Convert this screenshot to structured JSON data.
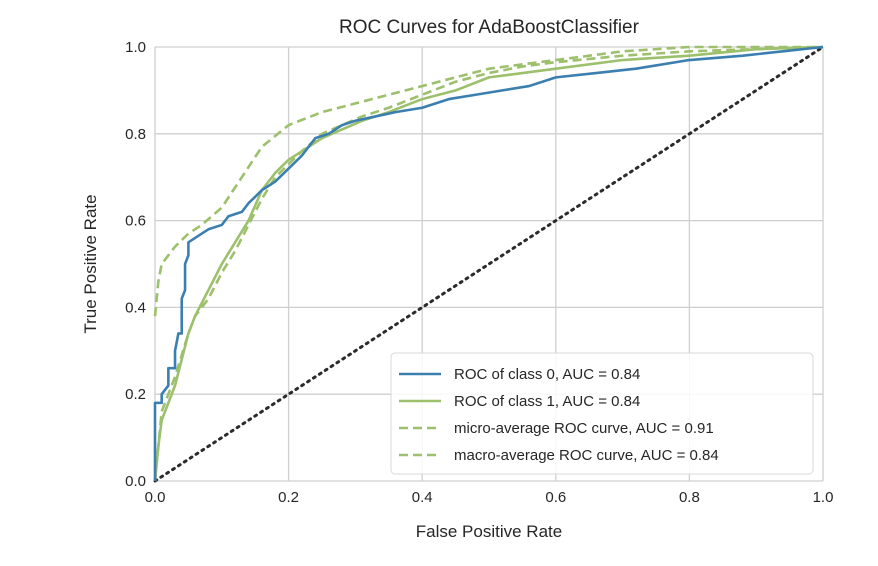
{
  "chart_data": {
    "type": "line",
    "title": "ROC Curves for AdaBoostClassifier",
    "xlabel": "False Positive Rate",
    "ylabel": "True Positive Rate",
    "xlim": [
      0.0,
      1.0
    ],
    "ylim": [
      0.0,
      1.0
    ],
    "grid": true,
    "legend_position": "lower-right",
    "x_ticks": [
      "0.0",
      "0.2",
      "0.4",
      "0.6",
      "0.8",
      "1.0"
    ],
    "y_ticks": [
      "0.0",
      "0.2",
      "0.4",
      "0.6",
      "0.8",
      "1.0"
    ],
    "series": [
      {
        "name": "ROC of class 0, AUC = 0.84",
        "color": "#3b7fb0",
        "style": "solid",
        "points": [
          [
            0,
            0
          ],
          [
            0,
            0.18
          ],
          [
            0.01,
            0.18
          ],
          [
            0.01,
            0.2
          ],
          [
            0.02,
            0.22
          ],
          [
            0.02,
            0.26
          ],
          [
            0.03,
            0.26
          ],
          [
            0.03,
            0.3
          ],
          [
            0.035,
            0.34
          ],
          [
            0.04,
            0.34
          ],
          [
            0.04,
            0.42
          ],
          [
            0.045,
            0.44
          ],
          [
            0.045,
            0.5
          ],
          [
            0.05,
            0.52
          ],
          [
            0.05,
            0.55
          ],
          [
            0.06,
            0.56
          ],
          [
            0.08,
            0.58
          ],
          [
            0.1,
            0.59
          ],
          [
            0.11,
            0.61
          ],
          [
            0.13,
            0.62
          ],
          [
            0.14,
            0.64
          ],
          [
            0.16,
            0.67
          ],
          [
            0.18,
            0.69
          ],
          [
            0.2,
            0.72
          ],
          [
            0.22,
            0.75
          ],
          [
            0.24,
            0.79
          ],
          [
            0.26,
            0.8
          ],
          [
            0.28,
            0.82
          ],
          [
            0.3,
            0.83
          ],
          [
            0.33,
            0.84
          ],
          [
            0.36,
            0.85
          ],
          [
            0.4,
            0.86
          ],
          [
            0.44,
            0.88
          ],
          [
            0.48,
            0.89
          ],
          [
            0.52,
            0.9
          ],
          [
            0.56,
            0.91
          ],
          [
            0.6,
            0.93
          ],
          [
            0.66,
            0.94
          ],
          [
            0.72,
            0.95
          ],
          [
            0.8,
            0.97
          ],
          [
            0.88,
            0.98
          ],
          [
            0.94,
            0.99
          ],
          [
            1.0,
            1.0
          ]
        ]
      },
      {
        "name": "ROC of class 1, AUC = 0.84",
        "color": "#9dc06c",
        "style": "solid",
        "points": [
          [
            0,
            0
          ],
          [
            0.005,
            0.08
          ],
          [
            0.01,
            0.14
          ],
          [
            0.02,
            0.18
          ],
          [
            0.03,
            0.22
          ],
          [
            0.04,
            0.28
          ],
          [
            0.05,
            0.34
          ],
          [
            0.06,
            0.38
          ],
          [
            0.08,
            0.44
          ],
          [
            0.1,
            0.5
          ],
          [
            0.12,
            0.55
          ],
          [
            0.14,
            0.6
          ],
          [
            0.16,
            0.67
          ],
          [
            0.18,
            0.71
          ],
          [
            0.2,
            0.74
          ],
          [
            0.22,
            0.76
          ],
          [
            0.25,
            0.79
          ],
          [
            0.28,
            0.81
          ],
          [
            0.31,
            0.83
          ],
          [
            0.35,
            0.85
          ],
          [
            0.4,
            0.88
          ],
          [
            0.45,
            0.9
          ],
          [
            0.5,
            0.93
          ],
          [
            0.55,
            0.94
          ],
          [
            0.6,
            0.95
          ],
          [
            0.7,
            0.97
          ],
          [
            0.8,
            0.98
          ],
          [
            0.9,
            0.995
          ],
          [
            1.0,
            1.0
          ]
        ]
      },
      {
        "name": "micro-average ROC curve, AUC = 0.91",
        "color": "#9dc06c",
        "style": "dashed",
        "points": [
          [
            0,
            0.38
          ],
          [
            0.005,
            0.46
          ],
          [
            0.01,
            0.5
          ],
          [
            0.02,
            0.52
          ],
          [
            0.03,
            0.54
          ],
          [
            0.05,
            0.57
          ],
          [
            0.07,
            0.59
          ],
          [
            0.1,
            0.63
          ],
          [
            0.13,
            0.7
          ],
          [
            0.16,
            0.77
          ],
          [
            0.2,
            0.82
          ],
          [
            0.25,
            0.85
          ],
          [
            0.3,
            0.87
          ],
          [
            0.35,
            0.89
          ],
          [
            0.4,
            0.91
          ],
          [
            0.45,
            0.93
          ],
          [
            0.5,
            0.95
          ],
          [
            0.6,
            0.97
          ],
          [
            0.7,
            0.99
          ],
          [
            0.8,
            1.0
          ],
          [
            1.0,
            1.0
          ]
        ]
      },
      {
        "name": "macro-average ROC curve, AUC = 0.84",
        "color": "#9dc06c",
        "style": "dashed",
        "points": [
          [
            0,
            0
          ],
          [
            0.01,
            0.16
          ],
          [
            0.02,
            0.2
          ],
          [
            0.03,
            0.24
          ],
          [
            0.04,
            0.29
          ],
          [
            0.05,
            0.34
          ],
          [
            0.06,
            0.38
          ],
          [
            0.08,
            0.42
          ],
          [
            0.1,
            0.48
          ],
          [
            0.12,
            0.53
          ],
          [
            0.14,
            0.59
          ],
          [
            0.16,
            0.65
          ],
          [
            0.18,
            0.7
          ],
          [
            0.2,
            0.73
          ],
          [
            0.22,
            0.76
          ],
          [
            0.25,
            0.8
          ],
          [
            0.28,
            0.82
          ],
          [
            0.31,
            0.84
          ],
          [
            0.35,
            0.86
          ],
          [
            0.4,
            0.89
          ],
          [
            0.45,
            0.92
          ],
          [
            0.5,
            0.94
          ],
          [
            0.55,
            0.955
          ],
          [
            0.6,
            0.965
          ],
          [
            0.7,
            0.98
          ],
          [
            0.8,
            0.99
          ],
          [
            0.9,
            0.995
          ],
          [
            1.0,
            1.0
          ]
        ]
      }
    ],
    "reference_line": {
      "color": "#2b2b2b",
      "style": "dotted",
      "points": [
        [
          0,
          0
        ],
        [
          1,
          1
        ]
      ]
    }
  }
}
